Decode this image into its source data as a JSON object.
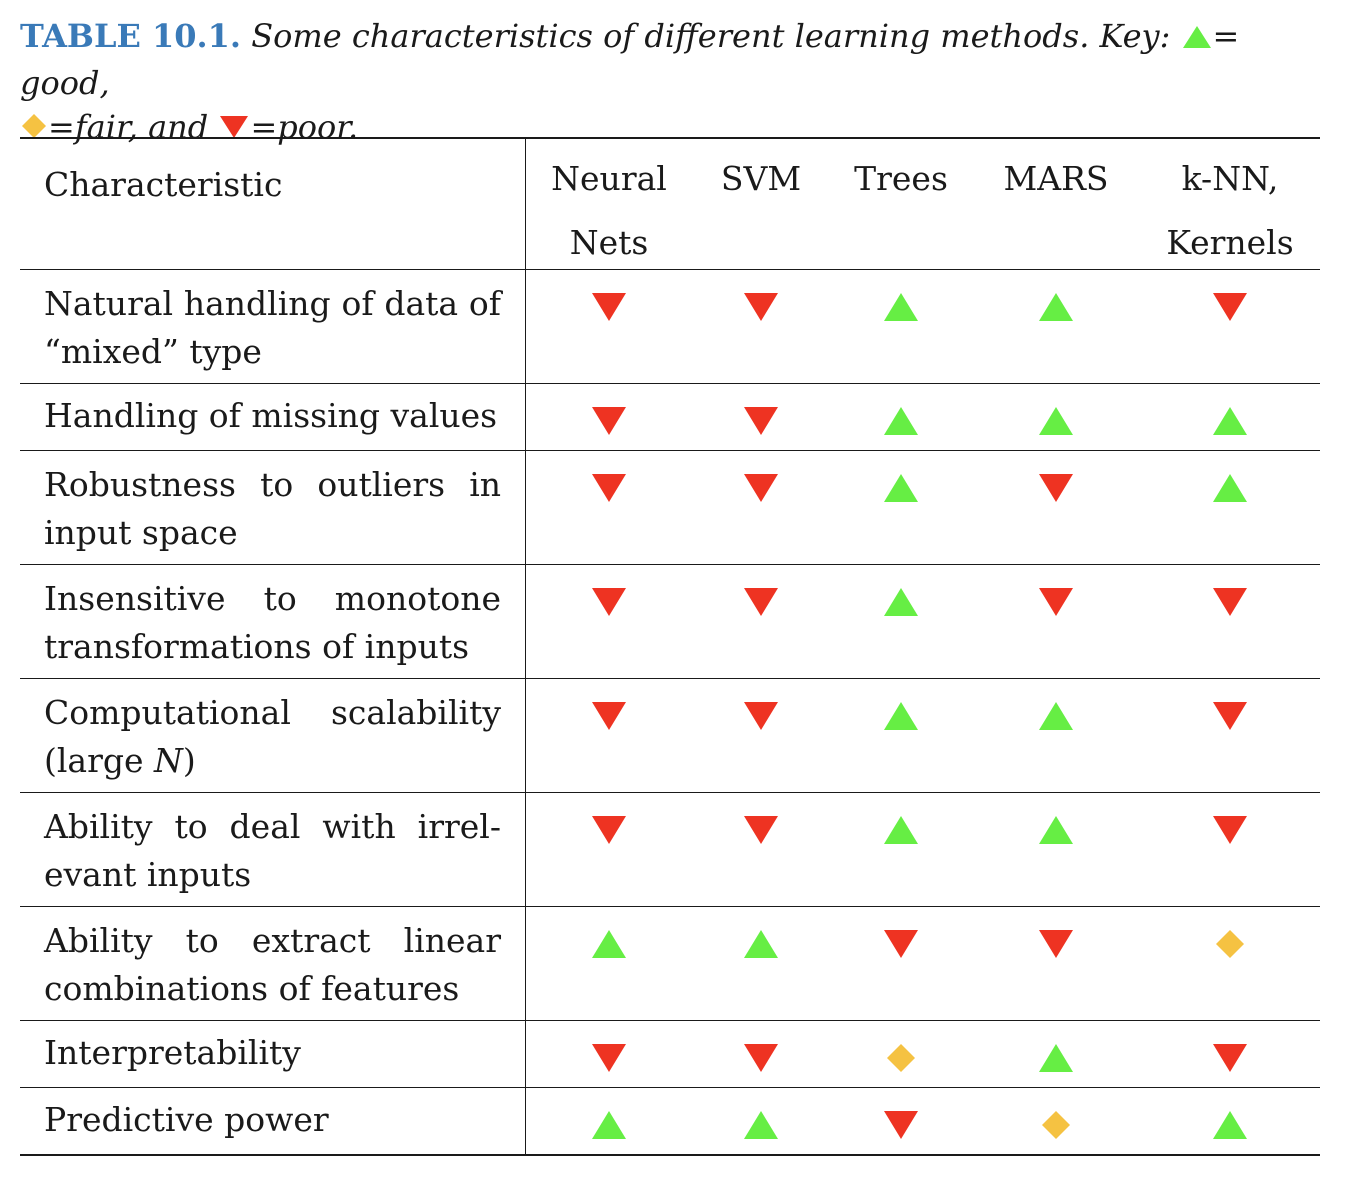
{
  "caption": {
    "label": "TABLE 10.1.",
    "text_before_key": " Some characteristics of different learning methods. Key: ",
    "good_text": "= good,",
    "fair_text": "=fair, and ",
    "poor_text": "=poor."
  },
  "colors": {
    "good": "#66ee44",
    "fair": "#f5c242",
    "poor": "#ee3322",
    "label": "#3a7ab8"
  },
  "chart_data": {
    "type": "table",
    "columns": [
      "Characteristic",
      "Neural Nets",
      "SVM",
      "Trees",
      "MARS",
      "k-NN, Kernels"
    ],
    "header": {
      "characteristic": "Characteristic",
      "methods": [
        {
          "line1": "Neural",
          "line2": "Nets"
        },
        {
          "line1": "SVM",
          "line2": ""
        },
        {
          "line1": "Trees",
          "line2": ""
        },
        {
          "line1": "MARS",
          "line2": ""
        },
        {
          "line1": "k-NN,",
          "line2": "Kernels"
        }
      ]
    },
    "rows": [
      {
        "characteristic": "Natural handling of data of “mixed” type",
        "ratings": [
          "poor",
          "poor",
          "good",
          "good",
          "poor"
        ]
      },
      {
        "characteristic": "Handling of missing values",
        "ratings": [
          "poor",
          "poor",
          "good",
          "good",
          "good"
        ]
      },
      {
        "characteristic": "Robustness to outliers in input space",
        "ratings": [
          "poor",
          "poor",
          "good",
          "poor",
          "good"
        ]
      },
      {
        "characteristic": "Insensitive to monotone transformations of inputs",
        "ratings": [
          "poor",
          "poor",
          "good",
          "poor",
          "poor"
        ]
      },
      {
        "characteristic": "Computational scalability (large N)",
        "ratings": [
          "poor",
          "poor",
          "good",
          "good",
          "poor"
        ]
      },
      {
        "characteristic": "Ability to deal with irrel-evant inputs",
        "ratings": [
          "poor",
          "poor",
          "good",
          "good",
          "poor"
        ]
      },
      {
        "characteristic": "Ability to extract linear combinations of features",
        "ratings": [
          "good",
          "good",
          "poor",
          "poor",
          "fair"
        ]
      },
      {
        "characteristic": "Interpretability",
        "ratings": [
          "poor",
          "poor",
          "fair",
          "good",
          "poor"
        ]
      },
      {
        "characteristic": "Predictive power",
        "ratings": [
          "good",
          "good",
          "poor",
          "fair",
          "good"
        ]
      }
    ]
  }
}
